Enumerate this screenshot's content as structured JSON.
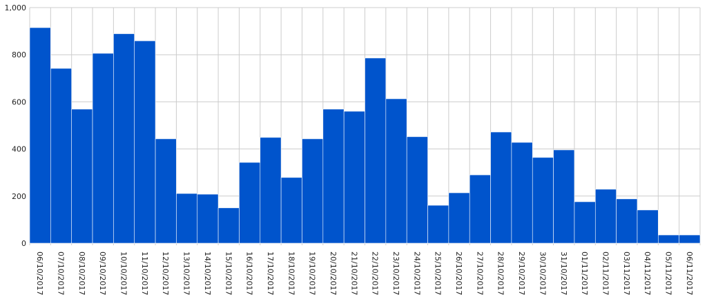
{
  "chart_data": {
    "type": "bar",
    "categories": [
      "06/10/2017",
      "07/10/2017",
      "08/10/2017",
      "09/10/2017",
      "10/10/2017",
      "11/10/2017",
      "12/10/2017",
      "13/10/2017",
      "14/10/2017",
      "15/10/2017",
      "16/10/2017",
      "17/10/2017",
      "18/10/2017",
      "19/10/2017",
      "20/10/2017",
      "21/10/2017",
      "22/10/2017",
      "23/10/2017",
      "24/10/2017",
      "25/10/2017",
      "26/10/2017",
      "27/10/2017",
      "28/10/2017",
      "29/10/2017",
      "30/10/2017",
      "31/10/2017",
      "01/11/2017",
      "02/11/2017",
      "03/11/2017",
      "04/11/2017",
      "05/11/2017",
      "06/11/2017"
    ],
    "values": [
      915,
      742,
      569,
      806,
      889,
      859,
      443,
      211,
      208,
      150,
      343,
      449,
      279,
      443,
      569,
      560,
      786,
      613,
      452,
      161,
      214,
      290,
      472,
      428,
      364,
      396,
      176,
      229,
      188,
      141,
      35,
      35
    ],
    "color": "#0054cc",
    "ylim": [
      0,
      1000
    ],
    "yticks": [
      0,
      200,
      400,
      600,
      800,
      {
        "value": 1000,
        "label": "1,000"
      }
    ],
    "grid": true
  }
}
